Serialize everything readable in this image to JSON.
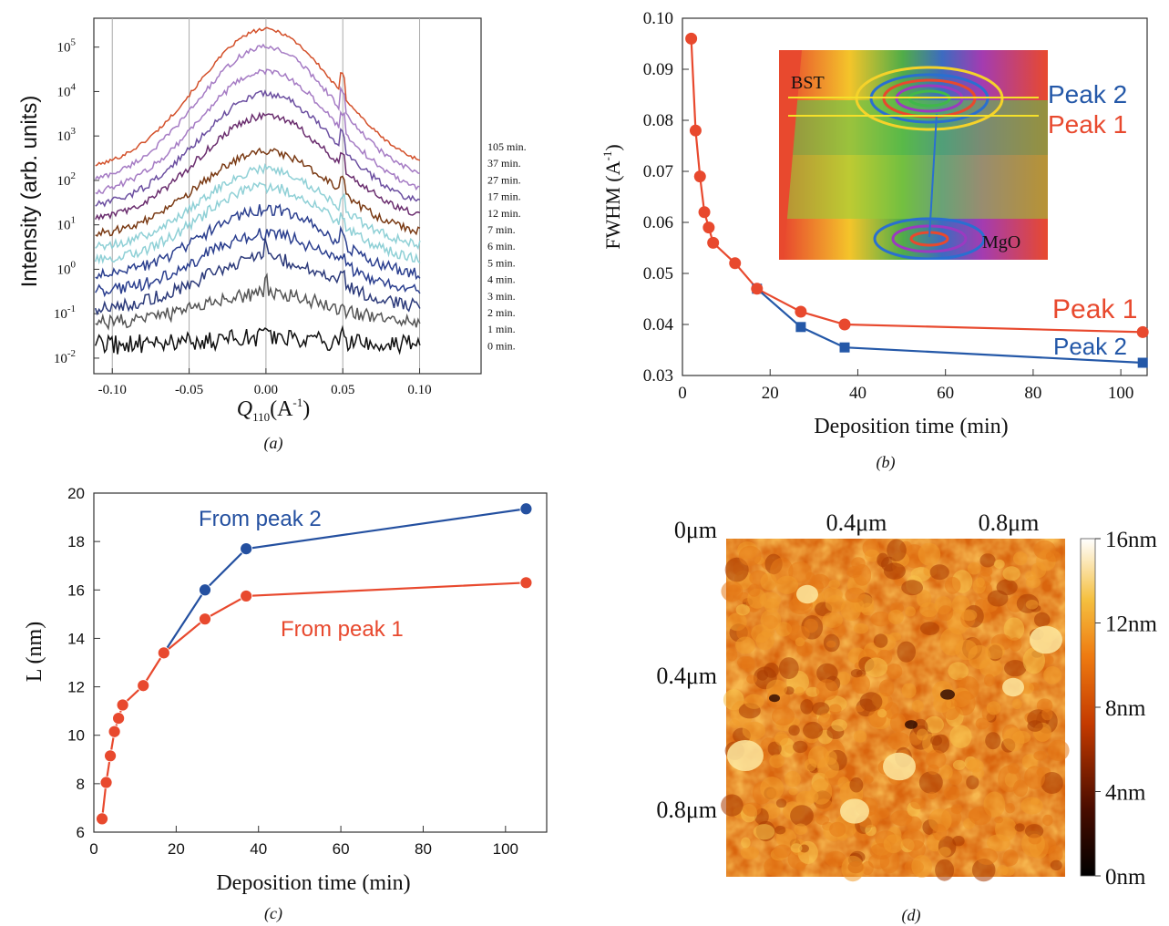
{
  "chart_data": [
    {
      "panel": "(a)",
      "type": "line",
      "xlabel_main": "Q",
      "xlabel_sub": "110",
      "xlabel_unit": "(A",
      "xlabel_sup": "-1",
      "xlabel_end": ")",
      "ylabel": "Intensity (arb. units)",
      "log_scale": true,
      "xlim": [
        -0.112,
        0.14
      ],
      "ylim_log10": [
        -2.35,
        5.65
      ],
      "xticks": [
        -0.1,
        -0.05,
        0.0,
        0.05,
        0.1
      ],
      "xtick_labels": [
        "-0.10",
        "-0.05",
        "0.00",
        "0.05",
        "0.10"
      ],
      "ytick_exponents": [
        -2,
        -1,
        0,
        1,
        2,
        3,
        4,
        5
      ],
      "ytick_base": "10",
      "vertical_gridlines": [
        -0.1,
        -0.05,
        0.0,
        0.05,
        0.1
      ],
      "series": [
        {
          "name": "105 min.",
          "color": "#d3502a",
          "peak_log10": 5.4,
          "edge_log10": 2.35,
          "noise": 0.04
        },
        {
          "name": "37 min.",
          "color": "#a57bc4",
          "peak_log10": 5.0,
          "edge_log10": 2.05,
          "noise": 0.06
        },
        {
          "name": "27 min.",
          "color": "#a57bc4",
          "peak_log10": 4.45,
          "edge_log10": 1.75,
          "noise": 0.07
        },
        {
          "name": "17 min.",
          "color": "#6b4ea0",
          "peak_log10": 3.95,
          "edge_log10": 1.45,
          "noise": 0.08
        },
        {
          "name": "12 min.",
          "color": "#6a2d6e",
          "peak_log10": 3.45,
          "edge_log10": 1.15,
          "noise": 0.08
        },
        {
          "name": "7 min.",
          "color": "#7a3a14",
          "peak_log10": 2.65,
          "edge_log10": 0.8,
          "noise": 0.09
        },
        {
          "name": "6 min.",
          "color": "#8fd0d6",
          "peak_log10": 2.25,
          "edge_log10": 0.5,
          "noise": 0.1
        },
        {
          "name": "5 min.",
          "color": "#8fd0d6",
          "peak_log10": 1.85,
          "edge_log10": 0.2,
          "noise": 0.12
        },
        {
          "name": "4 min.",
          "color": "#2b3f8f",
          "peak_log10": 1.35,
          "edge_log10": -0.15,
          "noise": 0.13
        },
        {
          "name": "3 min.",
          "color": "#2b3f8f",
          "peak_log10": 0.8,
          "edge_log10": -0.5,
          "noise": 0.14
        },
        {
          "name": "2 min.",
          "color": "#2c3a7a",
          "peak_log10": 0.25,
          "edge_log10": -0.85,
          "noise": 0.15
        },
        {
          "name": "1 min.",
          "color": "#555555",
          "peak_log10": -0.55,
          "edge_log10": -1.2,
          "noise": 0.16
        },
        {
          "name": "0 min.",
          "color": "#111111",
          "peak_log10": -1.55,
          "edge_log10": -1.7,
          "noise": 0.22
        }
      ],
      "caption": "(a)"
    },
    {
      "panel": "(b)",
      "type": "line",
      "xlabel": "Deposition time (min)",
      "ylabel_main": "FWHM (A",
      "ylabel_sup": "-1",
      "ylabel_end": ")",
      "xlim": [
        0,
        106
      ],
      "ylim": [
        0.03,
        0.1
      ],
      "xticks": [
        0,
        20,
        40,
        60,
        80,
        100
      ],
      "yticks": [
        0.03,
        0.04,
        0.05,
        0.06,
        0.07,
        0.08,
        0.09,
        0.1
      ],
      "ytick_labels": [
        "0.03",
        "0.04",
        "0.05",
        "0.06",
        "0.07",
        "0.08",
        "0.09",
        "0.10"
      ],
      "series": [
        {
          "name": "Peak 1",
          "color": "#e8492e",
          "marker": "circle",
          "x": [
            2,
            3,
            4,
            5,
            6,
            7,
            12,
            17,
            27,
            37,
            105
          ],
          "y": [
            0.096,
            0.078,
            0.069,
            0.062,
            0.059,
            0.056,
            0.052,
            0.047,
            0.0425,
            0.04,
            0.0385
          ]
        },
        {
          "name": "Peak 2",
          "color": "#2458a8",
          "marker": "square",
          "x": [
            17,
            27,
            37,
            105
          ],
          "y": [
            0.047,
            0.0395,
            0.0355,
            0.0325
          ]
        }
      ],
      "inset_labels": {
        "bst": "BST",
        "mgo": "MgO",
        "peak2": "Peak 2",
        "peak1": "Peak 1"
      },
      "caption": "(b)"
    },
    {
      "panel": "(c)",
      "type": "line",
      "xlabel": "Deposition time (min)",
      "ylabel": "L (nm)",
      "xlim": [
        0,
        110
      ],
      "ylim": [
        6,
        20
      ],
      "xticks": [
        0,
        20,
        40,
        60,
        80,
        100
      ],
      "yticks": [
        6,
        8,
        10,
        12,
        14,
        16,
        18,
        20
      ],
      "series": [
        {
          "name": "From peak 2",
          "color": "#2450a0",
          "marker": "circle",
          "x": [
            17,
            27,
            37,
            105
          ],
          "y": [
            13.4,
            16.0,
            17.7,
            19.35
          ]
        },
        {
          "name": "From peak 1",
          "color": "#e8492e",
          "marker": "circle",
          "x": [
            2,
            3,
            4,
            5,
            6,
            7,
            12,
            17,
            27,
            37,
            105
          ],
          "y": [
            6.55,
            8.05,
            9.15,
            10.15,
            10.7,
            11.25,
            12.05,
            13.4,
            14.8,
            15.75,
            16.3
          ]
        }
      ],
      "caption": "(c)"
    },
    {
      "panel": "(d)",
      "type": "heatmap",
      "top_axis_labels": [
        "0.4μm",
        "0.8μm"
      ],
      "left_axis_labels": [
        "0μm",
        "0.4μm",
        "0.8μm"
      ],
      "colorbar_labels": [
        "16nm",
        "12nm",
        "8nm",
        "4nm",
        "0nm"
      ],
      "color_range_nm": [
        0,
        16
      ],
      "caption": "(d)"
    }
  ]
}
